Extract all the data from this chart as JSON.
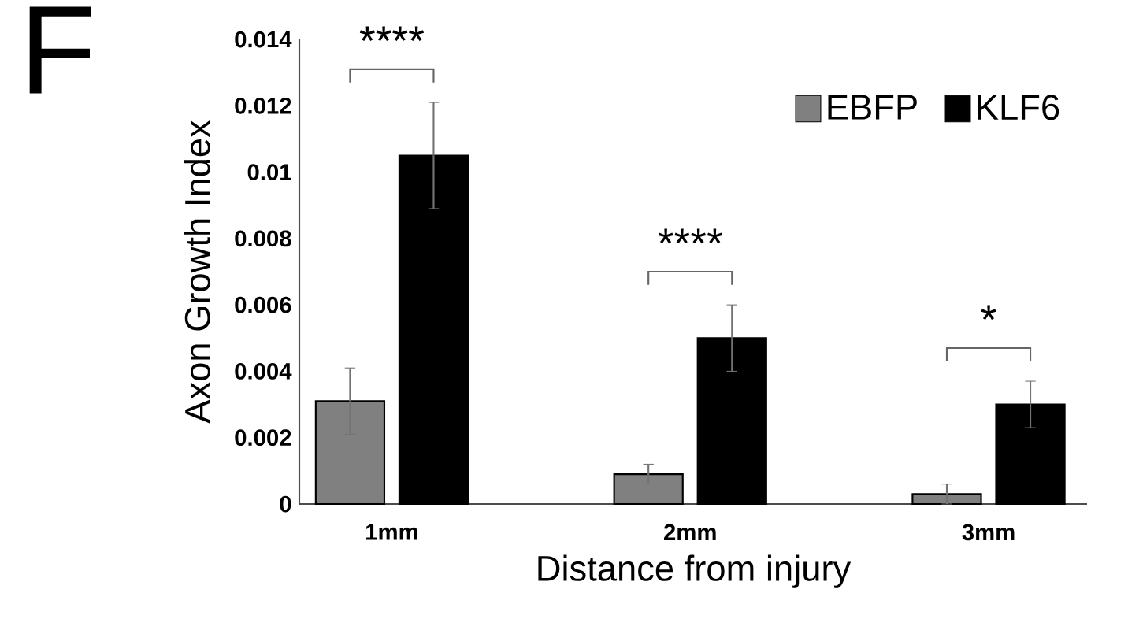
{
  "chart_data": {
    "type": "bar",
    "xlabel": "Distance from injury",
    "ylabel": "Axon Growth Index",
    "categories": [
      "1mm",
      "2mm",
      "3mm"
    ],
    "series": [
      {
        "name": "EBFP",
        "color": "#808080",
        "values": [
          0.0031,
          0.0009,
          0.0003
        ],
        "errors": [
          0.001,
          0.0003,
          0.0003
        ]
      },
      {
        "name": "KLF6",
        "color": "#000000",
        "values": [
          0.0105,
          0.005,
          0.003
        ],
        "errors": [
          0.0016,
          0.001,
          0.0007
        ]
      }
    ],
    "ylim": [
      0,
      0.014
    ],
    "yticks": [
      0,
      0.002,
      0.004,
      0.006,
      0.008,
      0.01,
      0.012,
      0.014
    ],
    "grid": false,
    "legend": "top right",
    "annotations": [
      "F",
      "****",
      "****",
      "*"
    ]
  }
}
